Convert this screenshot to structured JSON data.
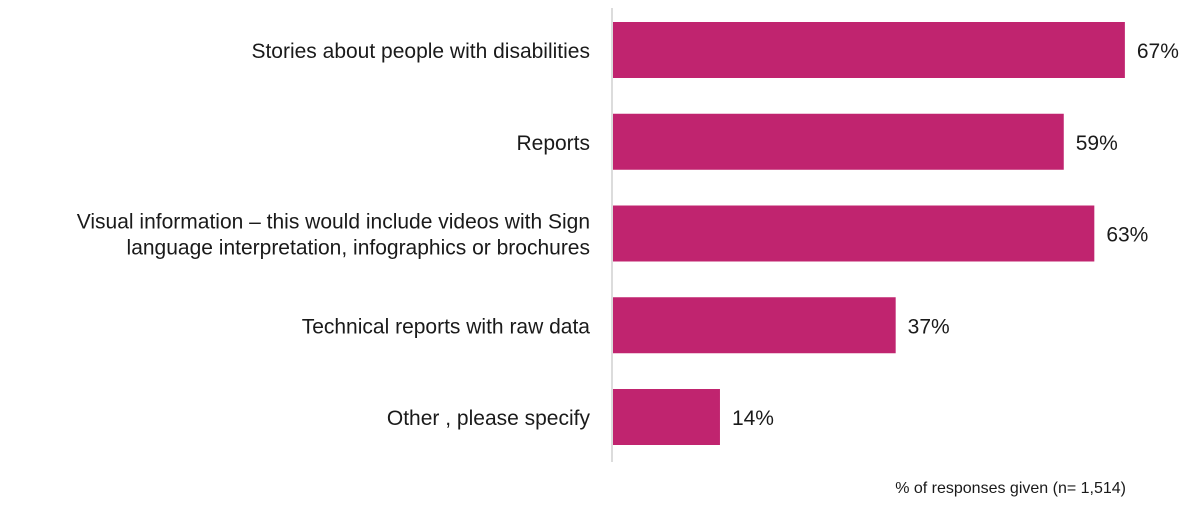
{
  "chart_data": {
    "type": "bar",
    "orientation": "horizontal",
    "categories": [
      [
        "Stories about people with disabilities"
      ],
      [
        "Reports"
      ],
      [
        "Visual information – this would include videos with Sign",
        "language interpretation, infographics or brochures"
      ],
      [
        "Technical reports with raw data"
      ],
      [
        "Other , please specify"
      ]
    ],
    "values": [
      67,
      59,
      63,
      37,
      14
    ],
    "value_labels": [
      "67%",
      "59%",
      "63%",
      "37%",
      "14%"
    ],
    "xlim": [
      0,
      100
    ],
    "xlabel": "% of responses given (n= 1,514)",
    "grid": false,
    "legend": "none",
    "bar_color": "#C0246F",
    "axis_color": "#d0d0d0"
  }
}
